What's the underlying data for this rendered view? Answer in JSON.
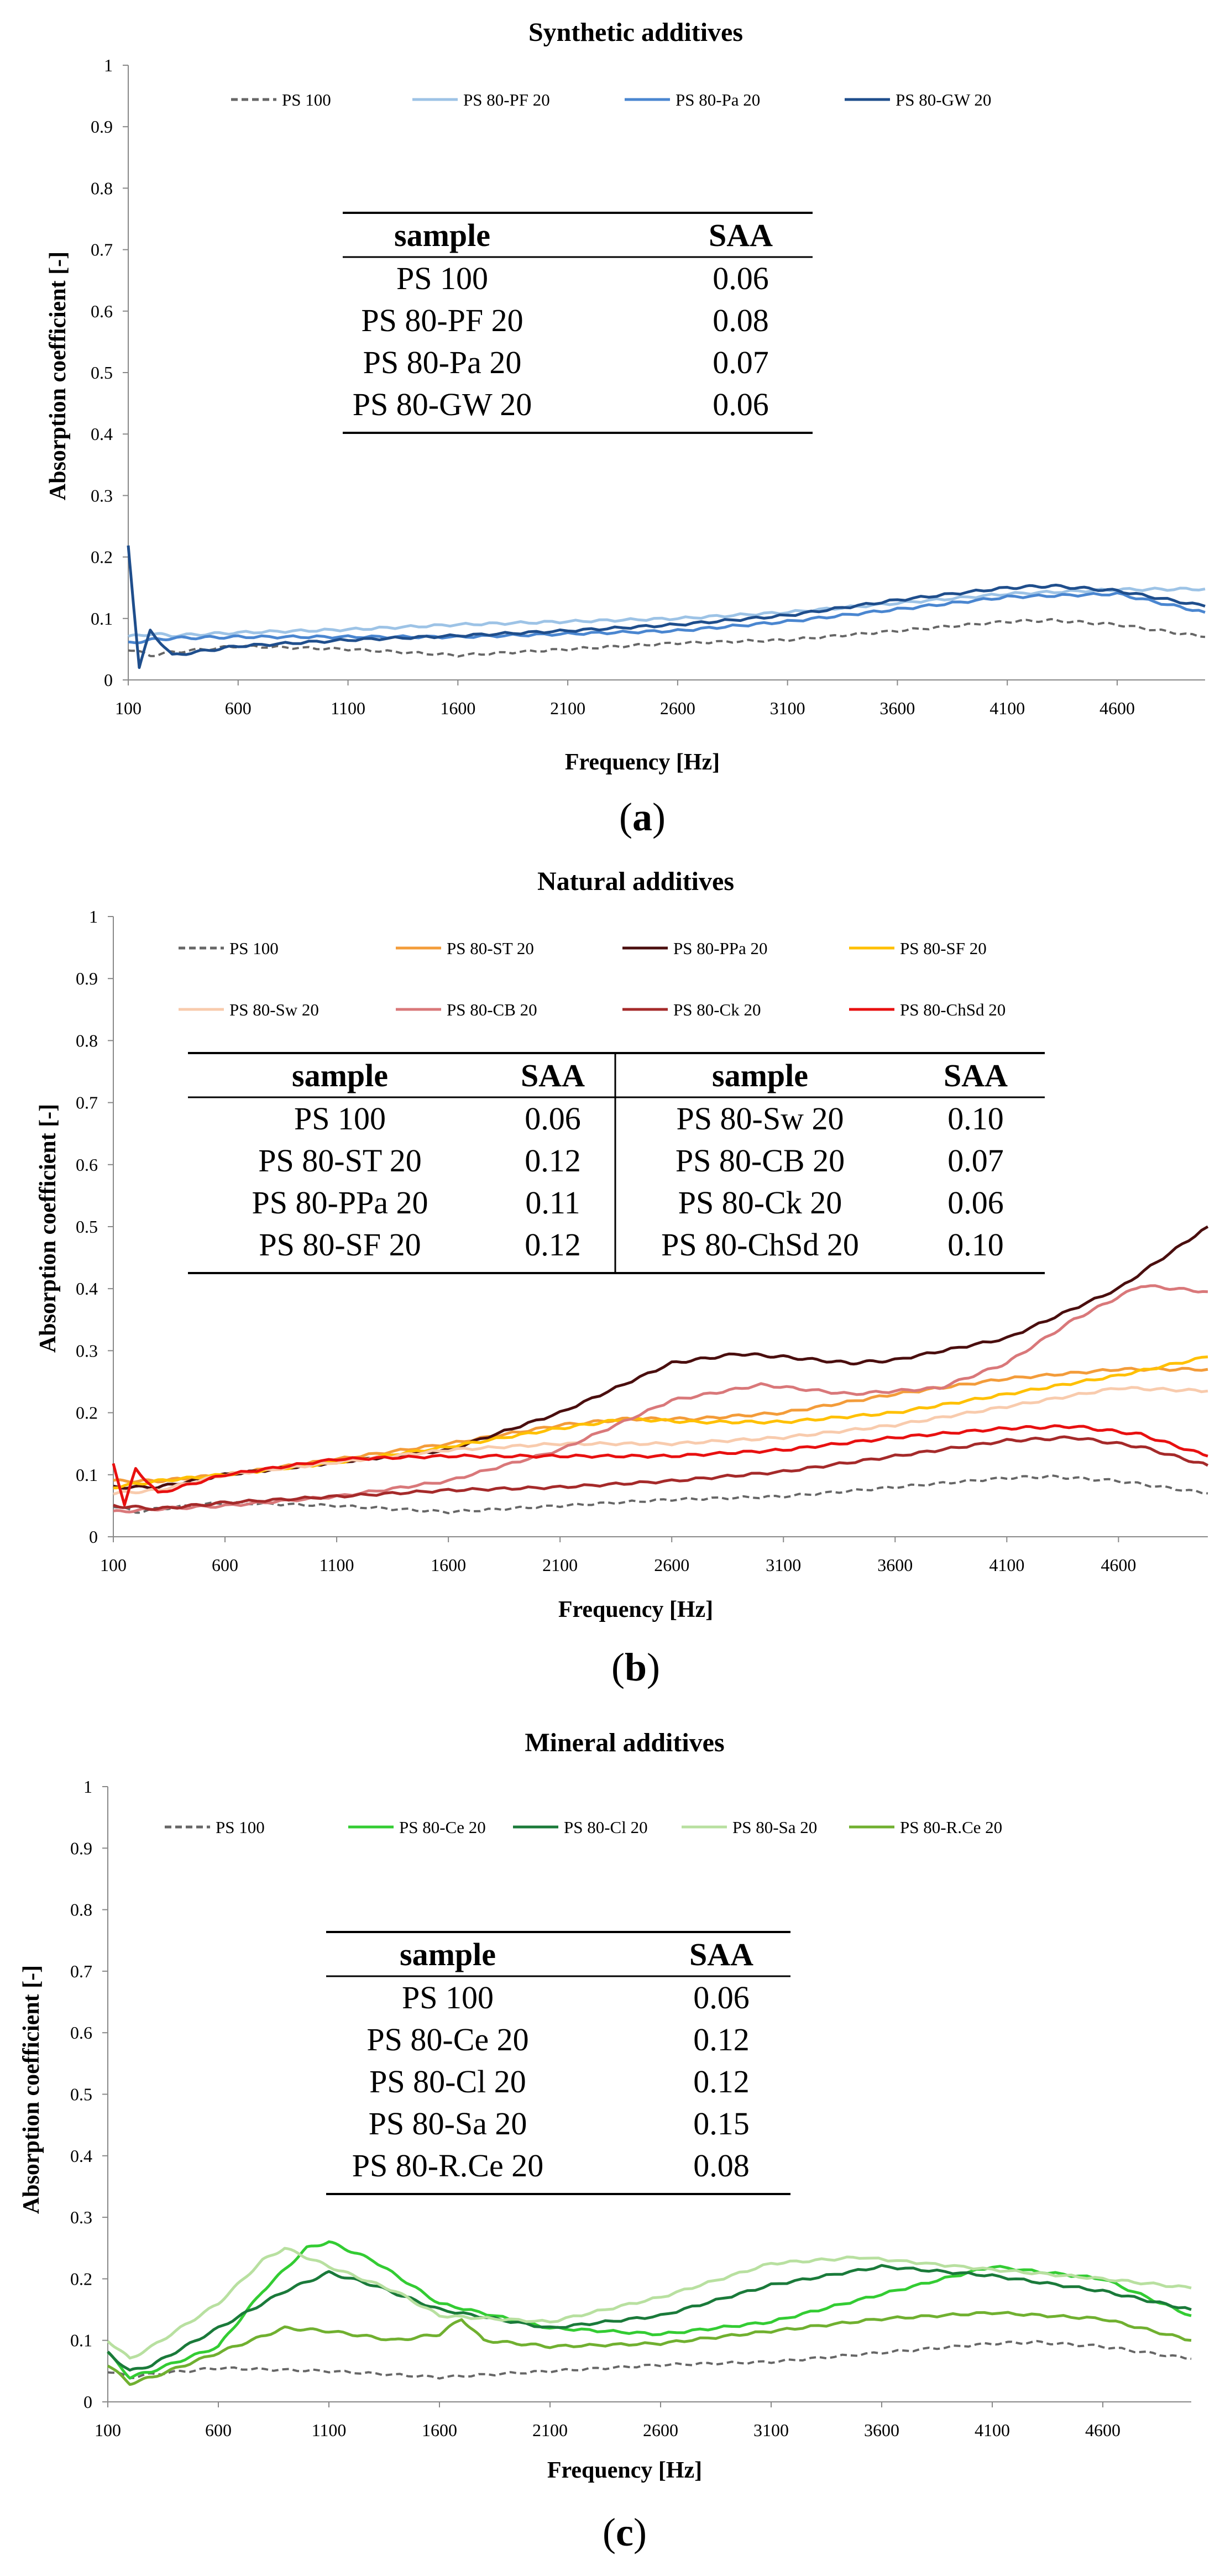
{
  "chart_data": [
    {
      "type": "line",
      "title": "Synthetic additives",
      "xlabel": "Frequency [Hz]",
      "ylabel": "Absorption coefficient [-]",
      "xlim": [
        100,
        5000
      ],
      "ylim": [
        0,
        1
      ],
      "xticks": [
        "100",
        "600",
        "1100",
        "1600",
        "2100",
        "2600",
        "3100",
        "3600",
        "4100",
        "4600"
      ],
      "yticks": [
        "0",
        "0.1",
        "0.2",
        "0.3",
        "0.4",
        "0.5",
        "0.6",
        "0.7",
        "0.8",
        "0.9",
        "1"
      ],
      "caption_letter": "a",
      "series": [
        {
          "name": "PS 100",
          "color": "#666666",
          "dash": true,
          "x": [
            100,
            200,
            300,
            600,
            1100,
            1600,
            2100,
            2600,
            3100,
            3600,
            4100,
            4300,
            4600,
            5000
          ],
          "y": [
            0.05,
            0.04,
            0.045,
            0.055,
            0.05,
            0.04,
            0.05,
            0.06,
            0.065,
            0.08,
            0.095,
            0.097,
            0.09,
            0.07
          ]
        },
        {
          "name": "PS 80-PF 20",
          "color": "#9dc3e6",
          "dash": false,
          "x": [
            100,
            200,
            300,
            600,
            1100,
            1600,
            2100,
            2600,
            3100,
            3600,
            4100,
            4600,
            5000
          ],
          "y": [
            0.07,
            0.075,
            0.072,
            0.077,
            0.082,
            0.09,
            0.095,
            0.1,
            0.11,
            0.125,
            0.14,
            0.147,
            0.148
          ]
        },
        {
          "name": "PS 80-Pa 20",
          "color": "#4a86d0",
          "dash": false,
          "x": [
            100,
            200,
            300,
            600,
            1100,
            1600,
            2100,
            2600,
            3100,
            3600,
            4100,
            4600,
            5000
          ],
          "y": [
            0.06,
            0.065,
            0.068,
            0.07,
            0.07,
            0.07,
            0.075,
            0.08,
            0.095,
            0.115,
            0.135,
            0.14,
            0.11
          ]
        },
        {
          "name": "PS 80-GW 20",
          "color": "#1f4e8c",
          "dash": false,
          "x": [
            100,
            150,
            200,
            300,
            600,
            1100,
            1600,
            2100,
            2600,
            3100,
            3600,
            4100,
            4300,
            4600,
            5000
          ],
          "y": [
            0.22,
            0.02,
            0.08,
            0.04,
            0.055,
            0.065,
            0.072,
            0.08,
            0.09,
            0.105,
            0.13,
            0.15,
            0.153,
            0.145,
            0.12
          ]
        }
      ],
      "table": {
        "headers": [
          "sample",
          "SAA"
        ],
        "rows": [
          [
            "PS 100",
            "0.06"
          ],
          [
            "PS 80-PF 20",
            "0.08"
          ],
          [
            "PS 80-Pa 20",
            "0.07"
          ],
          [
            "PS 80-GW 20",
            "0.06"
          ]
        ]
      }
    },
    {
      "type": "line",
      "title": "Natural additives",
      "xlabel": "Frequency [Hz]",
      "ylabel": "Absorption coefficient [-]",
      "xlim": [
        100,
        5000
      ],
      "ylim": [
        0,
        1
      ],
      "xticks": [
        "100",
        "600",
        "1100",
        "1600",
        "2100",
        "2600",
        "3100",
        "3600",
        "4100",
        "4600"
      ],
      "yticks": [
        "0",
        "0.1",
        "0.2",
        "0.3",
        "0.4",
        "0.5",
        "0.6",
        "0.7",
        "0.8",
        "0.9",
        "1"
      ],
      "caption_letter": "b",
      "series": [
        {
          "name": "PS 100",
          "color": "#666666",
          "dash": true,
          "x": [
            100,
            200,
            300,
            600,
            1100,
            1600,
            2100,
            2600,
            3100,
            3600,
            4100,
            4300,
            4600,
            5000
          ],
          "y": [
            0.05,
            0.04,
            0.045,
            0.055,
            0.05,
            0.04,
            0.05,
            0.06,
            0.065,
            0.08,
            0.095,
            0.097,
            0.09,
            0.07
          ]
        },
        {
          "name": "PS 80-ST 20",
          "color": "#f39c3a",
          "dash": false,
          "x": [
            100,
            300,
            600,
            1100,
            1600,
            2100,
            2400,
            2700,
            3100,
            3600,
            4100,
            4600,
            5000
          ],
          "y": [
            0.09,
            0.09,
            0.1,
            0.125,
            0.15,
            0.18,
            0.19,
            0.19,
            0.2,
            0.23,
            0.255,
            0.27,
            0.27
          ]
        },
        {
          "name": "PS 80-PPa 20",
          "color": "#4a0e0e",
          "dash": false,
          "x": [
            100,
            300,
            600,
            1100,
            1600,
            2100,
            2600,
            2900,
            3100,
            3400,
            3600,
            4100,
            4600,
            5000
          ],
          "y": [
            0.08,
            0.08,
            0.1,
            0.12,
            0.14,
            0.2,
            0.28,
            0.295,
            0.29,
            0.28,
            0.285,
            0.32,
            0.4,
            0.5
          ]
        },
        {
          "name": "PS 80-SF 20",
          "color": "#ffc000",
          "dash": false,
          "x": [
            100,
            300,
            600,
            1100,
            1600,
            2100,
            2400,
            2700,
            3100,
            3600,
            4100,
            4600,
            5000
          ],
          "y": [
            0.08,
            0.09,
            0.1,
            0.12,
            0.145,
            0.175,
            0.19,
            0.185,
            0.185,
            0.2,
            0.23,
            0.26,
            0.29
          ]
        },
        {
          "name": "PS 80-Sw 20",
          "color": "#f8cbad",
          "dash": false,
          "x": [
            100,
            300,
            600,
            1100,
            1600,
            2100,
            2600,
            3100,
            3600,
            4100,
            4600,
            5000
          ],
          "y": [
            0.07,
            0.075,
            0.1,
            0.12,
            0.14,
            0.15,
            0.15,
            0.16,
            0.18,
            0.21,
            0.24,
            0.235
          ]
        },
        {
          "name": "PS 80-CB 20",
          "color": "#d9787a",
          "dash": false,
          "x": [
            100,
            300,
            600,
            1100,
            1600,
            2100,
            2600,
            3000,
            3400,
            3800,
            4100,
            4400,
            4700,
            5000
          ],
          "y": [
            0.04,
            0.045,
            0.05,
            0.065,
            0.09,
            0.14,
            0.22,
            0.245,
            0.23,
            0.24,
            0.28,
            0.35,
            0.405,
            0.395
          ]
        },
        {
          "name": "PS 80-Ck 20",
          "color": "#a52a2a",
          "dash": false,
          "x": [
            100,
            300,
            600,
            1100,
            1600,
            2100,
            2600,
            3100,
            3600,
            4100,
            4400,
            4700,
            5000
          ],
          "y": [
            0.05,
            0.045,
            0.055,
            0.065,
            0.075,
            0.08,
            0.09,
            0.105,
            0.13,
            0.155,
            0.16,
            0.145,
            0.115
          ]
        },
        {
          "name": "PS 80-ChSd 20",
          "color": "#e81010",
          "dash": false,
          "x": [
            100,
            150,
            200,
            300,
            600,
            1100,
            1600,
            2100,
            2600,
            3100,
            3600,
            4100,
            4400,
            4700,
            5000
          ],
          "y": [
            0.12,
            0.05,
            0.11,
            0.07,
            0.1,
            0.125,
            0.13,
            0.13,
            0.13,
            0.14,
            0.16,
            0.175,
            0.178,
            0.165,
            0.13
          ]
        }
      ],
      "table": {
        "headers": [
          "sample",
          "SAA",
          "sample",
          "SAA"
        ],
        "rows": [
          [
            "PS 100",
            "0.06",
            "PS 80-Sw 20",
            "0.10"
          ],
          [
            "PS 80-ST 20",
            "0.12",
            "PS 80-CB 20",
            "0.07"
          ],
          [
            "PS 80-PPa 20",
            "0.11",
            "PS 80-Ck 20",
            "0.06"
          ],
          [
            "PS 80-SF 20",
            "0.12",
            "PS 80-ChSd 20",
            "0.10"
          ]
        ]
      }
    },
    {
      "type": "line",
      "title": "Mineral additives",
      "xlabel": "Frequency [Hz]",
      "ylabel": "Absorption coefficient [-]",
      "xlim": [
        100,
        5000
      ],
      "ylim": [
        0,
        1
      ],
      "xticks": [
        "100",
        "600",
        "1100",
        "1600",
        "2100",
        "2600",
        "3100",
        "3600",
        "4100",
        "4600"
      ],
      "yticks": [
        "0",
        "0.1",
        "0.2",
        "0.3",
        "0.4",
        "0.5",
        "0.6",
        "0.7",
        "0.8",
        "0.9",
        "1"
      ],
      "caption_letter": "c",
      "series": [
        {
          "name": "PS 100",
          "color": "#666666",
          "dash": true,
          "x": [
            100,
            200,
            300,
            600,
            1100,
            1600,
            2100,
            2600,
            3100,
            3600,
            4100,
            4300,
            4600,
            5000
          ],
          "y": [
            0.05,
            0.04,
            0.045,
            0.055,
            0.05,
            0.04,
            0.05,
            0.06,
            0.065,
            0.08,
            0.095,
            0.097,
            0.09,
            0.07
          ]
        },
        {
          "name": "PS 80-Ce 20",
          "color": "#33cc33",
          "dash": false,
          "x": [
            100,
            200,
            300,
            600,
            800,
            1000,
            1100,
            1300,
            1600,
            2100,
            2600,
            3100,
            3600,
            4100,
            4600,
            5000
          ],
          "y": [
            0.08,
            0.04,
            0.05,
            0.09,
            0.18,
            0.25,
            0.26,
            0.23,
            0.16,
            0.12,
            0.11,
            0.13,
            0.175,
            0.22,
            0.2,
            0.14
          ]
        },
        {
          "name": "PS 80-Cl 20",
          "color": "#1a7a3a",
          "dash": false,
          "x": [
            100,
            200,
            300,
            600,
            900,
            1100,
            1300,
            1600,
            2100,
            2600,
            3100,
            3600,
            4100,
            4600,
            5000
          ],
          "y": [
            0.08,
            0.05,
            0.06,
            0.12,
            0.18,
            0.21,
            0.19,
            0.15,
            0.12,
            0.14,
            0.19,
            0.22,
            0.205,
            0.18,
            0.15
          ]
        },
        {
          "name": "PS 80-Sa 20",
          "color": "#b8e0a0",
          "dash": false,
          "x": [
            100,
            200,
            300,
            600,
            800,
            900,
            1100,
            1400,
            1600,
            2100,
            2600,
            3100,
            3500,
            4100,
            4600,
            5000
          ],
          "y": [
            0.1,
            0.07,
            0.09,
            0.16,
            0.23,
            0.25,
            0.22,
            0.18,
            0.14,
            0.13,
            0.17,
            0.225,
            0.235,
            0.215,
            0.2,
            0.185
          ]
        },
        {
          "name": "PS 80-R.Ce 20",
          "color": "#70b030",
          "dash": false,
          "x": [
            100,
            200,
            300,
            600,
            900,
            1100,
            1400,
            1600,
            1700,
            1800,
            2100,
            2600,
            3100,
            3600,
            4100,
            4600,
            5000
          ],
          "y": [
            0.06,
            0.03,
            0.04,
            0.08,
            0.12,
            0.115,
            0.1,
            0.11,
            0.135,
            0.1,
            0.09,
            0.095,
            0.115,
            0.135,
            0.145,
            0.135,
            0.1
          ]
        }
      ],
      "table": {
        "headers": [
          "sample",
          "SAA"
        ],
        "rows": [
          [
            "PS 100",
            "0.06"
          ],
          [
            "PS 80-Ce 20",
            "0.12"
          ],
          [
            "PS 80-Cl 20",
            "0.12"
          ],
          [
            "PS 80-Sa 20",
            "0.15"
          ],
          [
            "PS 80-R.Ce 20",
            "0.08"
          ]
        ]
      }
    }
  ]
}
